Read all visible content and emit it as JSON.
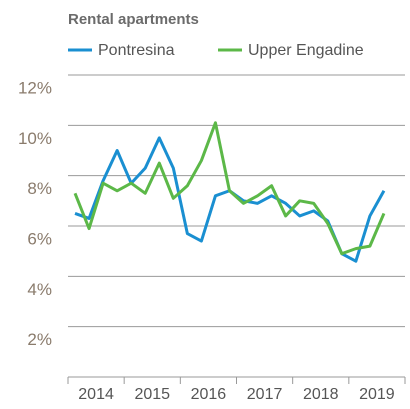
{
  "chart_data": {
    "type": "line",
    "title": "Rental apartments",
    "x": [
      2014.125,
      2014.375,
      2014.625,
      2014.875,
      2015.125,
      2015.375,
      2015.625,
      2015.875,
      2016.125,
      2016.375,
      2016.625,
      2016.875,
      2017.125,
      2017.375,
      2017.625,
      2017.875,
      2018.125,
      2018.375,
      2018.625,
      2018.875,
      2019.125,
      2019.375,
      2019.625
    ],
    "series": [
      {
        "name": "Pontresina",
        "color": "#1a8fd1",
        "values": [
          6.5,
          6.3,
          7.8,
          9.0,
          7.7,
          8.3,
          9.5,
          8.3,
          5.7,
          5.4,
          7.2,
          7.4,
          7.0,
          6.9,
          7.2,
          6.9,
          6.4,
          6.6,
          6.2,
          4.9,
          4.6,
          6.4,
          7.4
        ]
      },
      {
        "name": "Upper Engadine",
        "color": "#5cb848",
        "values": [
          7.3,
          5.9,
          7.7,
          7.4,
          7.7,
          7.3,
          8.5,
          7.1,
          7.6,
          8.6,
          10.1,
          7.4,
          6.9,
          7.2,
          7.6,
          6.4,
          7.0,
          6.9,
          6.1,
          4.9,
          5.1,
          5.2,
          6.5
        ]
      }
    ],
    "xlim": [
      2014,
      2020
    ],
    "xticks": [
      {
        "value": 2014.5,
        "label": "2014"
      },
      {
        "value": 2015.5,
        "label": "2015"
      },
      {
        "value": 2016.5,
        "label": "2016"
      },
      {
        "value": 2017.5,
        "label": "2017"
      },
      {
        "value": 2018.5,
        "label": "2018"
      },
      {
        "value": 2019.5,
        "label": "2019"
      }
    ],
    "xtick_marks": [
      2014,
      2015,
      2016,
      2017,
      2018,
      2019,
      2020
    ],
    "ylim": [
      0,
      12
    ],
    "yticks": [
      {
        "value": 2,
        "label": "2%"
      },
      {
        "value": 4,
        "label": "4%"
      },
      {
        "value": 6,
        "label": "6%"
      },
      {
        "value": 8,
        "label": "8%"
      },
      {
        "value": 10,
        "label": "10%"
      },
      {
        "value": 12,
        "label": "12%"
      }
    ],
    "grid": true
  }
}
